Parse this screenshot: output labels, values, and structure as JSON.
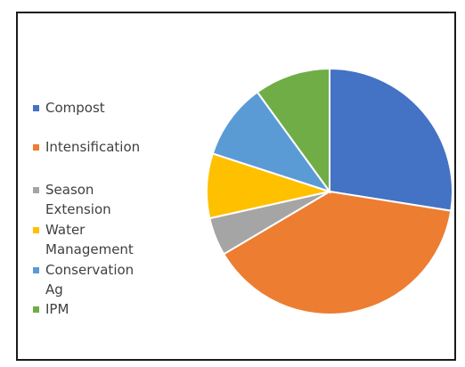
{
  "chart_data": {
    "type": "pie",
    "title": "",
    "legend_position": "left",
    "categories": [
      "Compost",
      "Intensification",
      "Season Extension",
      "Water Management",
      "Conservation Ag",
      "IPM"
    ],
    "values": [
      27.5,
      39,
      5,
      8.5,
      10,
      10
    ],
    "colors": [
      "#4472C4",
      "#ED7D31",
      "#A5A5A5",
      "#FFC000",
      "#5B9BD5",
      "#70AD47"
    ],
    "legend": [
      {
        "label": "Compost",
        "color": "#4472C4"
      },
      {
        "label": "Intensification",
        "color": "#ED7D31"
      },
      {
        "label": "Season Extension",
        "color": "#A5A5A5"
      },
      {
        "label": "Water Management",
        "color": "#FFC000"
      },
      {
        "label": "Conservation Ag",
        "color": "#5B9BD5"
      },
      {
        "label": "IPM",
        "color": "#70AD47"
      }
    ]
  }
}
